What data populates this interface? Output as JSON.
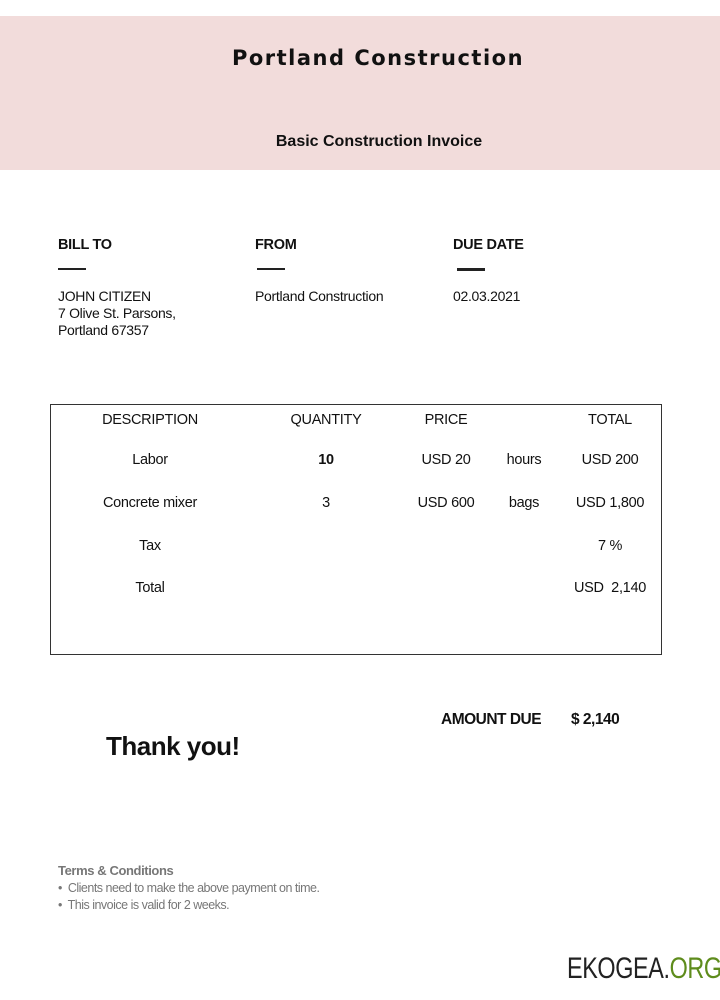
{
  "header": {
    "company": "Portland Construction",
    "subtitle": "Basic Construction Invoice",
    "band_color": "#f2dcdb"
  },
  "info": {
    "bill_to": {
      "label": "BILL TO",
      "lines": [
        "JOHN CITIZEN",
        "7 Olive St. Parsons,",
        "Portland 67357"
      ]
    },
    "from": {
      "label": "FROM",
      "value": "Portland Construction"
    },
    "due_date": {
      "label": "DUE DATE",
      "value": "02.03.2021"
    }
  },
  "table": {
    "headers": [
      "DESCRIPTION",
      "QUANTITY",
      "PRICE",
      "TOTAL"
    ],
    "rows": [
      {
        "description": "Labor",
        "quantity": "10",
        "price": "USD 20",
        "unit": "hours",
        "total": "USD 200"
      },
      {
        "description": "Concrete mixer",
        "quantity": "3",
        "price": "USD 600",
        "unit": "bags",
        "total": "USD 1,800"
      },
      {
        "description": "Tax",
        "total": "7 %"
      },
      {
        "description": "Total",
        "total": "USD  2,140"
      }
    ]
  },
  "amount_due": {
    "label": "AMOUNT DUE",
    "value": "$ 2,140"
  },
  "thanks": "Thank you!",
  "terms": {
    "title": "Terms & Conditions",
    "items": [
      "Clients need to make the above payment on time.",
      "This invoice is valid for 2 weeks."
    ]
  },
  "watermark": {
    "main": "EKOGEA.",
    "accent": "ORG",
    "accent_color": "#5e8c1c"
  }
}
